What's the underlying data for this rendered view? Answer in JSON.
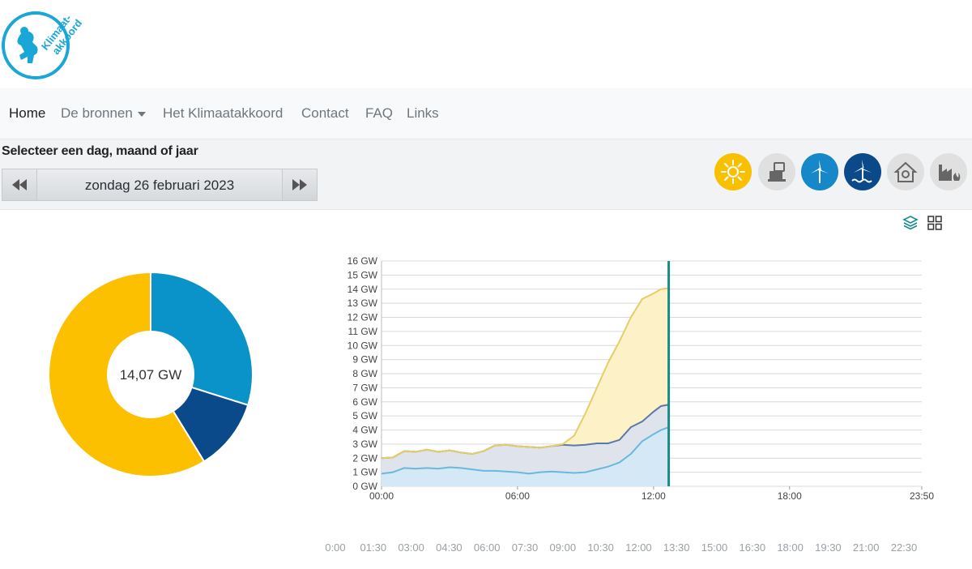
{
  "brand": {
    "logo_text_line1": "Klimaat-",
    "logo_text_line2": "akkoord",
    "color": "#1aa6d6"
  },
  "nav": {
    "items": [
      {
        "label": "Home",
        "active": true
      },
      {
        "label": "De bronnen",
        "dropdown": true
      },
      {
        "label": "Het Klimaatakkoord"
      },
      {
        "label": "Contact"
      },
      {
        "label": "FAQ"
      },
      {
        "label": "Links"
      }
    ]
  },
  "selector": {
    "heading": "Selecteer een dag, maand of jaar",
    "date": "zondag 26 februari 2023",
    "prev_icon": "fast-backward-icon",
    "next_icon": "fast-forward-icon"
  },
  "sources": [
    {
      "icon": "sun-icon",
      "color": "#f8c000",
      "active": true
    },
    {
      "icon": "factory-icon",
      "color": "#e0e0e0",
      "active": false
    },
    {
      "icon": "wind-turbine-icon",
      "color": "#1687c9",
      "active": true
    },
    {
      "icon": "offshore-wind-icon",
      "color": "#0b4a8a",
      "active": true
    },
    {
      "icon": "house-icon",
      "color": "#e0e0e0",
      "active": false
    },
    {
      "icon": "industry-icon",
      "color": "#e0e0e0",
      "active": false
    }
  ],
  "view_toggle": {
    "layers_icon": "layers-icon",
    "grid_icon": "grid-icon"
  },
  "donut": {
    "center_label": "14,07 GW",
    "slices": [
      {
        "source": "wind-land",
        "value": 4.2,
        "color": "#0a93c8"
      },
      {
        "source": "wind-sea",
        "value": 1.6,
        "color": "#0b4a8a"
      },
      {
        "source": "solar",
        "value": 8.27,
        "color": "#fcc000"
      }
    ]
  },
  "chart_data": {
    "type": "area",
    "y_ticks": [
      "0 GW",
      "1 GW",
      "2 GW",
      "3 GW",
      "4 GW",
      "5 GW",
      "6 GW",
      "7 GW",
      "8 GW",
      "9 GW",
      "10 GW",
      "11 GW",
      "12 GW",
      "13 GW",
      "14 GW",
      "15 GW",
      "16 GW"
    ],
    "x_ticks": [
      "00:00",
      "06:00",
      "12:00",
      "18:00",
      "23:50"
    ],
    "ylim": [
      0,
      16
    ],
    "xlim_hours": [
      0,
      23.833
    ],
    "current_time_hours": 12.67,
    "series": [
      {
        "color": "#6ab8de",
        "fill": "#d4e9f5",
        "points": [
          [
            0,
            0.9
          ],
          [
            0.5,
            1.0
          ],
          [
            1,
            1.3
          ],
          [
            1.5,
            1.25
          ],
          [
            2,
            1.3
          ],
          [
            2.5,
            1.25
          ],
          [
            3,
            1.35
          ],
          [
            3.5,
            1.3
          ],
          [
            4,
            1.2
          ],
          [
            4.5,
            1.1
          ],
          [
            5,
            1.1
          ],
          [
            5.5,
            1.05
          ],
          [
            6,
            1.0
          ],
          [
            6.5,
            0.9
          ],
          [
            7,
            1.0
          ],
          [
            7.5,
            1.05
          ],
          [
            8,
            1.0
          ],
          [
            8.5,
            0.95
          ],
          [
            9,
            1.0
          ],
          [
            9.5,
            1.2
          ],
          [
            10,
            1.4
          ],
          [
            10.5,
            1.7
          ],
          [
            11,
            2.3
          ],
          [
            11.5,
            3.2
          ],
          [
            12,
            3.7
          ],
          [
            12.33,
            4.0
          ],
          [
            12.67,
            4.2
          ]
        ]
      },
      {
        "color": "#5b78a6",
        "fill": "#dfe3ec",
        "points": [
          [
            0,
            2.0
          ],
          [
            0.5,
            2.05
          ],
          [
            1,
            2.5
          ],
          [
            1.5,
            2.45
          ],
          [
            2,
            2.6
          ],
          [
            2.5,
            2.45
          ],
          [
            3,
            2.55
          ],
          [
            3.5,
            2.4
          ],
          [
            4,
            2.3
          ],
          [
            4.5,
            2.5
          ],
          [
            5,
            2.9
          ],
          [
            5.5,
            2.95
          ],
          [
            6,
            2.85
          ],
          [
            6.5,
            2.8
          ],
          [
            7,
            2.75
          ],
          [
            7.5,
            2.85
          ],
          [
            8,
            2.95
          ],
          [
            8.5,
            2.9
          ],
          [
            9,
            2.95
          ],
          [
            9.5,
            3.05
          ],
          [
            10,
            3.05
          ],
          [
            10.5,
            3.3
          ],
          [
            11,
            4.2
          ],
          [
            11.5,
            4.6
          ],
          [
            12,
            5.3
          ],
          [
            12.33,
            5.7
          ],
          [
            12.67,
            5.8
          ]
        ]
      },
      {
        "color": "#e6cd68",
        "fill": "#fdf1c8",
        "points": [
          [
            0,
            2.0
          ],
          [
            0.5,
            2.05
          ],
          [
            1,
            2.5
          ],
          [
            1.5,
            2.45
          ],
          [
            2,
            2.6
          ],
          [
            2.5,
            2.45
          ],
          [
            3,
            2.55
          ],
          [
            3.5,
            2.4
          ],
          [
            4,
            2.3
          ],
          [
            4.5,
            2.5
          ],
          [
            5,
            2.9
          ],
          [
            5.5,
            2.95
          ],
          [
            6,
            2.85
          ],
          [
            6.5,
            2.8
          ],
          [
            7,
            2.75
          ],
          [
            7.5,
            2.85
          ],
          [
            8,
            3.0
          ],
          [
            8.5,
            3.6
          ],
          [
            9,
            5.2
          ],
          [
            9.5,
            7.0
          ],
          [
            10,
            8.8
          ],
          [
            10.5,
            10.3
          ],
          [
            11,
            12.0
          ],
          [
            11.5,
            13.3
          ],
          [
            12,
            13.7
          ],
          [
            12.33,
            14.0
          ],
          [
            12.67,
            14.07
          ]
        ]
      }
    ]
  },
  "time_slider": {
    "labels": [
      "0:00",
      "01:30",
      "03:00",
      "04:30",
      "06:00",
      "07:30",
      "09:00",
      "10:30",
      "12:00",
      "13:30",
      "15:00",
      "16:30",
      "18:00",
      "19:30",
      "21:00",
      "22:30"
    ]
  }
}
